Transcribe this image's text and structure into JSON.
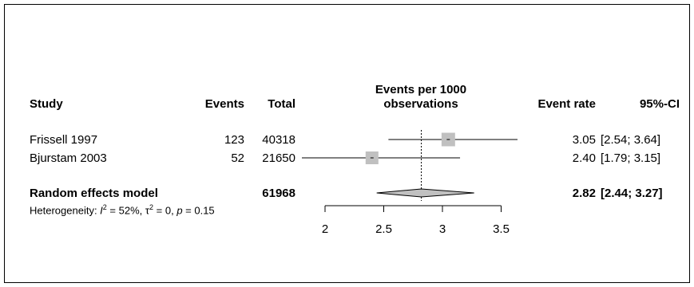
{
  "chart_data": {
    "type": "forest",
    "headers": {
      "study": "Study",
      "events": "Events",
      "total": "Total",
      "plot_line1": "Events per 1000",
      "plot_line2": "observations",
      "event_rate": "Event rate",
      "ci": "95%-CI"
    },
    "studies": [
      {
        "label": "Frissell 1997",
        "events": "123",
        "total": "40318",
        "rate": 3.05,
        "lower": 2.54,
        "upper": 3.64,
        "rate_text": "3.05",
        "ci_text": "[2.54; 3.64]"
      },
      {
        "label": "Bjurstam 2003",
        "events": "52",
        "total": "21650",
        "rate": 2.4,
        "lower": 1.79,
        "upper": 3.15,
        "rate_text": "2.40",
        "ci_text": "[1.79; 3.15]"
      }
    ],
    "summary": {
      "label": "Random effects model",
      "total": "61968",
      "rate": 2.82,
      "lower": 2.44,
      "upper": 3.27,
      "rate_text": "2.82",
      "ci_text": "[2.44; 3.27]"
    },
    "heterogeneity": {
      "prefix": "Heterogeneity: ",
      "i2_symbol": "I",
      "i2_value": " = 52%, ",
      "tau_symbol": "τ",
      "tau_value": " = 0, ",
      "p_symbol": "p",
      "p_value": " = 0.15"
    },
    "x_axis": {
      "ticks": [
        2,
        2.5,
        3,
        3.5
      ],
      "tick_labels": [
        "2",
        "2.5",
        "3",
        "3.5"
      ],
      "range": [
        2,
        3.5
      ]
    },
    "colors": {
      "box": "#c0c0c0",
      "diamond": "#c0c0c0",
      "line": "#000000"
    }
  }
}
